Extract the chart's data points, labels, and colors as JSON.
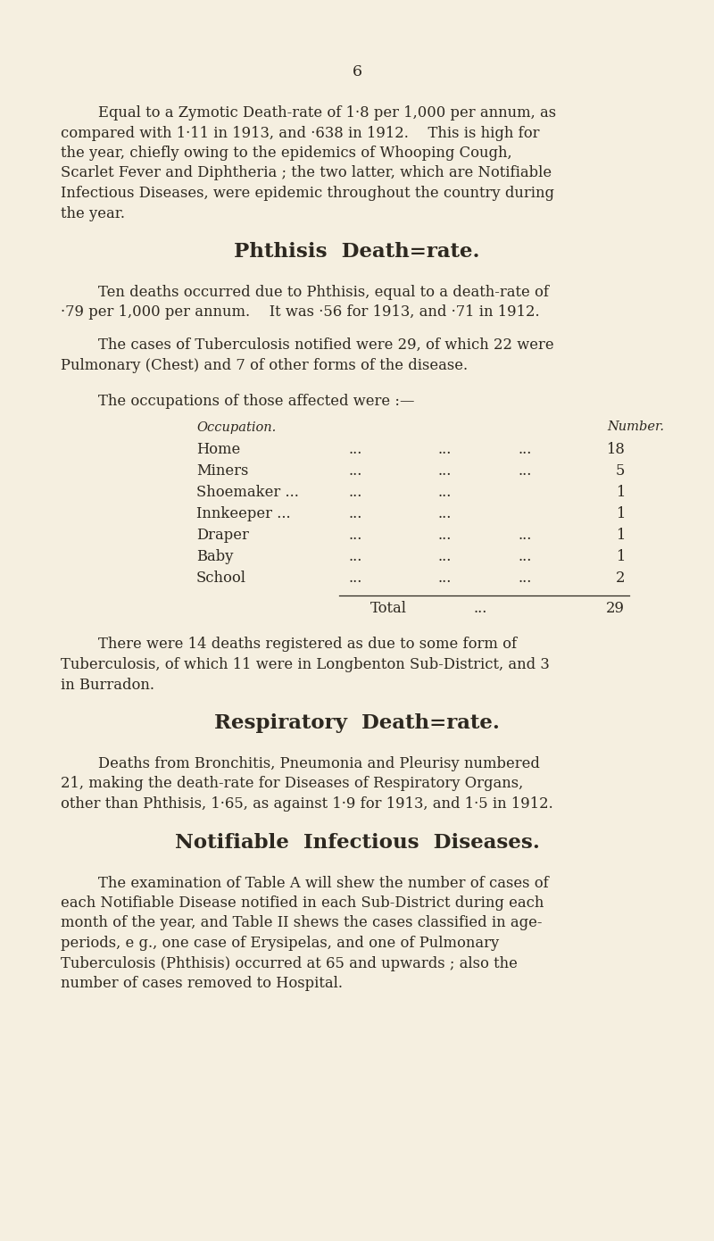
{
  "bg_color": "#f5efe0",
  "text_color": "#2d2820",
  "page_number": "6",
  "par1_lines": [
    "Equal to a Zymotic Death-rate of 1·8 per 1,000 per annum, as",
    "compared with 1·11 in 1913, and ·638 in 1912.  This is high for",
    "the year, chiefly owing to the epidemics of Whooping Cough,",
    "Scarlet Fever and Diphtheria ; the two latter, which are Notifiable",
    "Infectious Diseases, were epidemic throughout the country during",
    "the year."
  ],
  "heading1": "Phthisis  Death=rate.",
  "par2_lines": [
    "Ten deaths occurred due to Phthisis, equal to a death-rate of",
    "·79 per 1,000 per annum.  It was ·56 for 1913, and ·71 in 1912."
  ],
  "par3_lines": [
    "The cases of Tuberculosis notified were 29, of which 22 were",
    "Pulmonary (Chest) and 7 of other forms of the disease."
  ],
  "occ_intro": "The occupations of those affected were :—",
  "occ_header_left": "Occupation.",
  "occ_header_right": "Number.",
  "occ_rows": [
    [
      "Home",
      "...",
      "...",
      "...",
      "18"
    ],
    [
      "Miners",
      "...",
      "...",
      "...",
      "5"
    ],
    [
      "Shoemaker ...",
      "...",
      "...",
      "",
      "1"
    ],
    [
      "Innkeeper ...",
      "...",
      "...",
      "",
      "1"
    ],
    [
      "Draper",
      "...",
      "...",
      "...",
      "1"
    ],
    [
      "Baby",
      "...",
      "...",
      "...",
      "1"
    ],
    [
      "School",
      "...",
      "...",
      "...",
      "2"
    ]
  ],
  "total_label": "Total",
  "total_dots": "...",
  "total_number": "29",
  "par4_lines": [
    "There were 14 deaths registered as due to some form of",
    "Tuberculosis, of which 11 were in Longbenton Sub-District, and 3",
    "in Burradon."
  ],
  "heading2": "Respiratory  Death=rate.",
  "par5_lines": [
    "Deaths from Bronchitis, Pneumonia and Pleurisy numbered",
    "21, making the death-rate for Diseases of Respiratory Organs,",
    "other than Phthisis, 1·65, as against 1·9 for 1913, and 1·5 in 1912."
  ],
  "heading3": "Notifiable  Infectious  Diseases.",
  "par6_lines": [
    "The examination of Table A will shew the number of cases of",
    "each Notifiable Disease notified in each Sub-District during each",
    "month of the year, and Table II shews the cases classified in age-",
    "periods, e g., one case of Erysipelas, and one of Pulmonary",
    "Tuberculosis (Phthisis) occurred at 65 and upwards ; also the",
    "number of cases removed to Hospital."
  ]
}
